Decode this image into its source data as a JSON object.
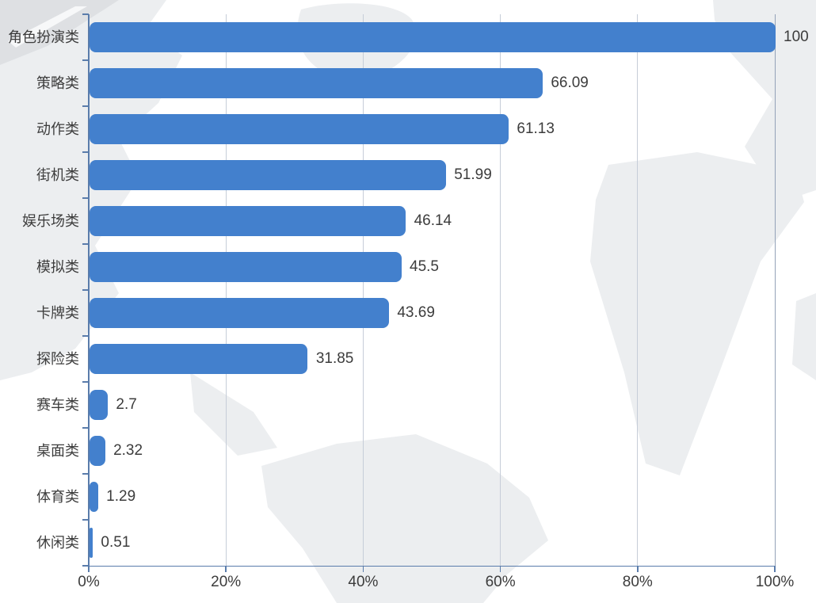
{
  "chart_data": {
    "type": "bar",
    "orientation": "horizontal",
    "title": "",
    "xlabel": "",
    "ylabel": "",
    "grid": true,
    "legend": false,
    "xlim": [
      0,
      100
    ],
    "x_ticks": [
      "0%",
      "20%",
      "40%",
      "60%",
      "80%",
      "100%"
    ],
    "x_tick_values": [
      0,
      20,
      40,
      60,
      80,
      100
    ],
    "categories": [
      "角色扮演类",
      "策略类",
      "动作类",
      "街机类",
      "娱乐场类",
      "模拟类",
      "卡牌类",
      "探险类",
      "赛车类",
      "桌面类",
      "体育类",
      "休闲类"
    ],
    "values": [
      100,
      66.09,
      61.13,
      51.99,
      46.14,
      45.5,
      43.69,
      31.85,
      2.7,
      2.32,
      1.29,
      0.51
    ],
    "value_labels": [
      "100",
      "66.09",
      "61.13",
      "51.99",
      "46.14",
      "45.5",
      "43.69",
      "31.85",
      "2.7",
      "2.32",
      "1.29",
      "0.51"
    ],
    "colors": {
      "bar": "#4380cd",
      "axis": "#5a7cab",
      "gridline": "#c6cdd8",
      "text": "#3c3c3c",
      "map_background": "#eceef0"
    }
  }
}
